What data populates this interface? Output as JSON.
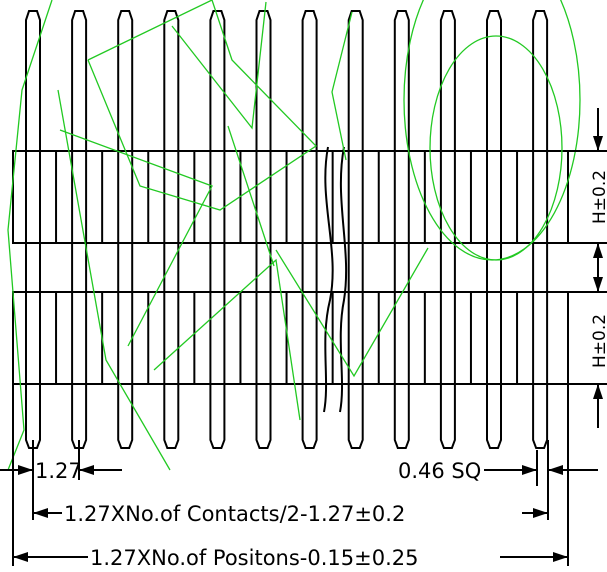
{
  "drawing": {
    "pin_count_visible": 12,
    "dimensions": {
      "pitch": "1.27",
      "pin_square": "0.46 SQ",
      "contacts_formula": "1.27XNo.of Contacts/2-1.27±0.2",
      "positions_formula": "1.27XNo.of Positons-0.15±0.25",
      "height_upper": "H±0.2",
      "height_lower": "H±0.2"
    },
    "colors": {
      "line": "#000000",
      "overlay": "#22c922",
      "background": "#ffffff"
    }
  }
}
